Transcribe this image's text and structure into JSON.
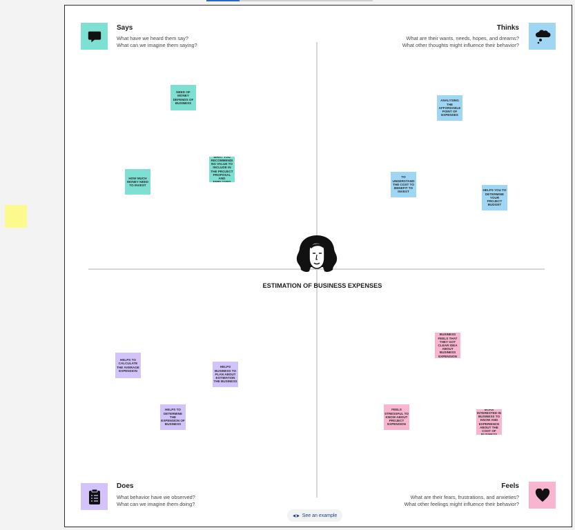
{
  "board": {
    "center_title": "ESTIMATION OF BUSINESS EXPENSES",
    "example_button": "See an example"
  },
  "quadrants": {
    "says": {
      "title": "Says",
      "icon": "speech-bubble-icon",
      "q1": "What have we heard them say?",
      "q2": "What can we imagine them saying?"
    },
    "thinks": {
      "title": "Thinks",
      "icon": "thought-cloud-icon",
      "q1": "What are their wants, needs, hopes, and dreams?",
      "q2": "What other thoughts might influence their behavior?"
    },
    "does": {
      "title": "Does",
      "icon": "clipboard-icon",
      "q1": "What behavior have we observed?",
      "q2": "What can we imagine them doing?"
    },
    "feels": {
      "title": "Feels",
      "icon": "heart-icon",
      "q1": "What are their fears, frustrations, and anxieties?",
      "q2": "What other feelings might influence their behavior?"
    }
  },
  "notes": {
    "says": [
      "NEED OF MONEY DEFENDS OF BUSINESS",
      "WHAT YOU RECOMMENDING VALUE TO INCLUDE IN THE PROJECT PROPOSAL AND EMPLOYED",
      "HOW MUCH MONEY NEED TO INVEST"
    ],
    "thinks": [
      "ANALYSING THE AFFORDABLE POINT OF EXPENSES",
      "TO UNDERSTAND THE COST TO BENEFIT TO INVEST",
      "HELPS YOU TO DETERMINE YOUR PROJECT BUDGET"
    ],
    "does": [
      "HELPS TO CALCULATE THE AVERAGE EXPENSION",
      "HELPS BUSINESS TO PLAN ABOUT ESTIMATION THE BUSINESS",
      "HELPS TO DETERMINE THE EXPENSION OF BUSINESS"
    ],
    "feels": [
      "BUSINESS FEELS THAT THEY GOT CLEAR IDEA ABOUT BUSINESS EXPENSION",
      "FEELS STRESSFUL TO KNOW ABOUT PROJECT EXPENSION",
      "IT CREATES MORE INTERESTED IN BUSINESS TO KNOW AND EXPERIENCE ABOUT THE COST OF BUSINESS EXPENSION"
    ]
  },
  "colors": {
    "says": "#7ee0d2",
    "thinks": "#9fd6f4",
    "does": "#d2c3fb",
    "feels": "#f8b5d0",
    "rail_note": "#fcfa8c"
  }
}
